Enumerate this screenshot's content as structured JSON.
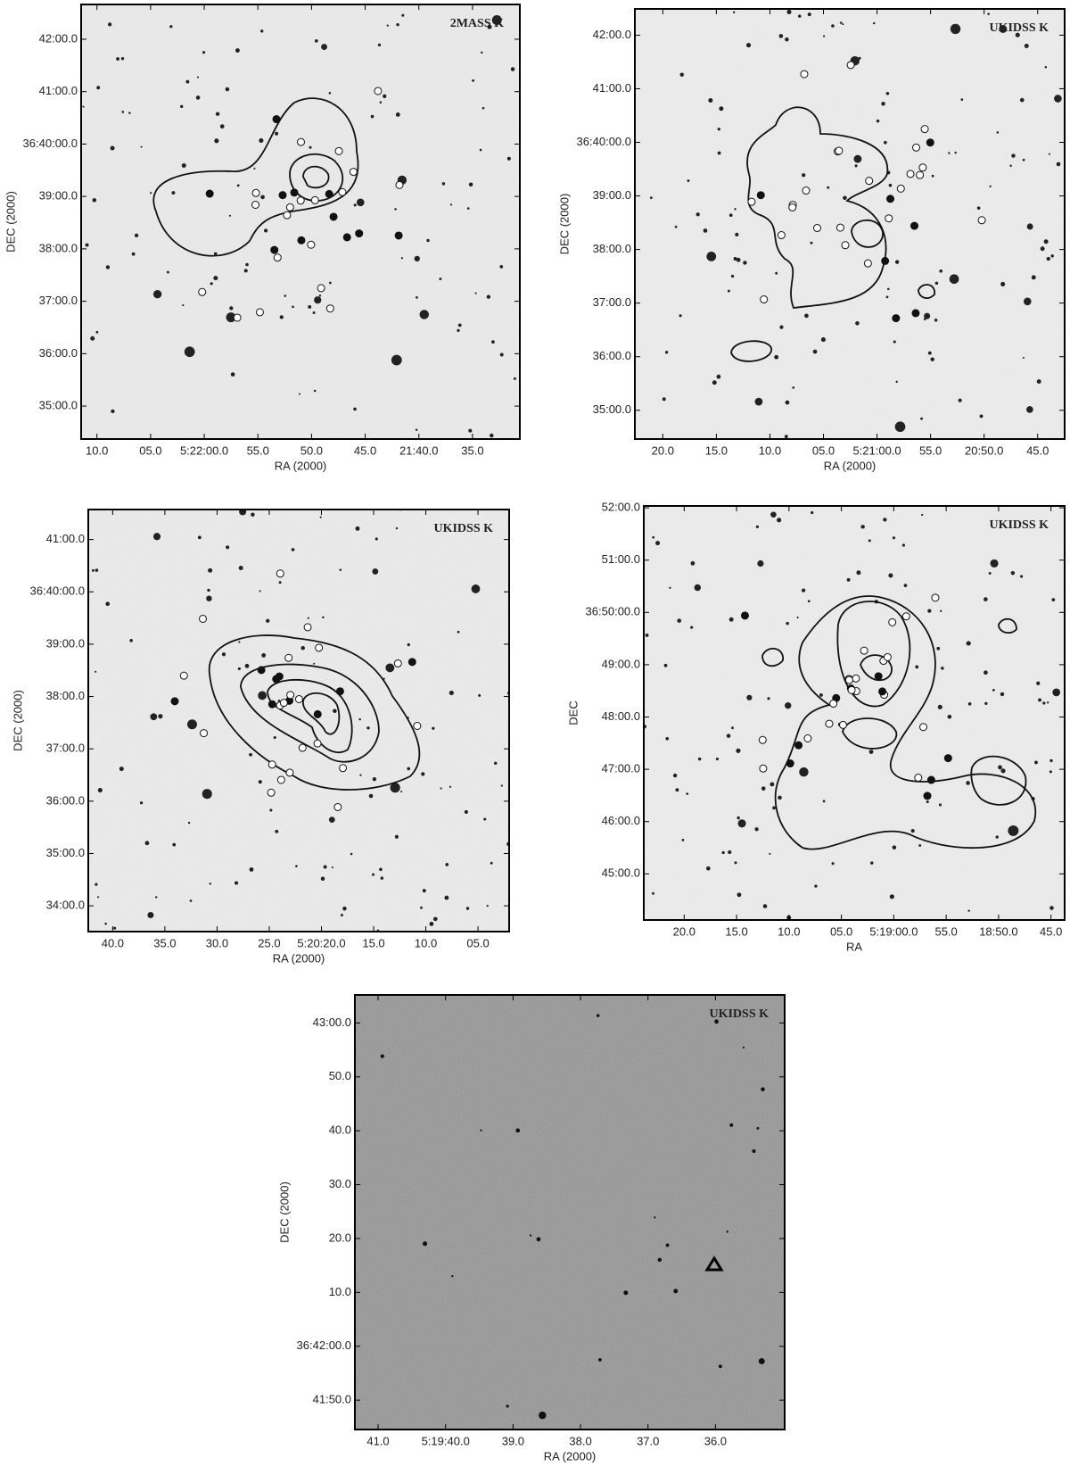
{
  "panels": [
    {
      "label": "2MASS K",
      "xlabel": "RA (2000)",
      "ylabel": "DEC (2000)",
      "xticks": [
        "10.0",
        "05.0",
        "5:22:00.0",
        "55.0",
        "50.0",
        "45.0",
        "21:40.0",
        "35.0"
      ],
      "yticks": [
        "42:00.0",
        "41:00.0",
        "36:40:00.0",
        "39:00.0",
        "38:00.0",
        "37:00.0",
        "36:00.0",
        "35:00.0"
      ]
    },
    {
      "label": "UKIDSS K",
      "xlabel": "RA (2000)",
      "ylabel": "DEC (2000)",
      "xticks": [
        "20.0",
        "15.0",
        "10.0",
        "05.0",
        "5:21:00.0",
        "55.0",
        "20:50.0",
        "45.0"
      ],
      "yticks": [
        "42:00.0",
        "41:00.0",
        "36:40:00.0",
        "39:00.0",
        "38:00.0",
        "37:00.0",
        "36:00.0",
        "35:00.0"
      ]
    },
    {
      "label": "UKIDSS K",
      "xlabel": "RA (2000)",
      "ylabel": "DEC (2000)",
      "xticks": [
        "40.0",
        "35.0",
        "30.0",
        "25.0",
        "5:20:20.0",
        "15.0",
        "10.0",
        "05.0"
      ],
      "yticks": [
        "41:00.0",
        "36:40:00.0",
        "39:00.0",
        "38:00.0",
        "37:00.0",
        "36:00.0",
        "35:00.0",
        "34:00.0"
      ]
    },
    {
      "label": "UKIDSS K",
      "xlabel": "RA",
      "ylabel": "DEC",
      "xticks": [
        "20.0",
        "15.0",
        "10.0",
        "05.0",
        "5:19:00.0",
        "55.0",
        "18:50.0",
        "45.0"
      ],
      "yticks": [
        "52:00.0",
        "51:00.0",
        "36:50:00.0",
        "49:00.0",
        "48:00.0",
        "47:00.0",
        "46:00.0",
        "45:00.0"
      ]
    },
    {
      "label": "UKIDSS K",
      "xlabel": "RA (2000)",
      "ylabel": "DEC (2000)",
      "xticks": [
        "41.0",
        "5:19:40.0",
        "39.0",
        "38.0",
        "37.0",
        "36.0"
      ],
      "yticks": [
        "43:00.0",
        "50.0",
        "40.0",
        "30.0",
        "20.0",
        "10.0",
        "36:42:00.0",
        "41:50.0"
      ]
    }
  ]
}
